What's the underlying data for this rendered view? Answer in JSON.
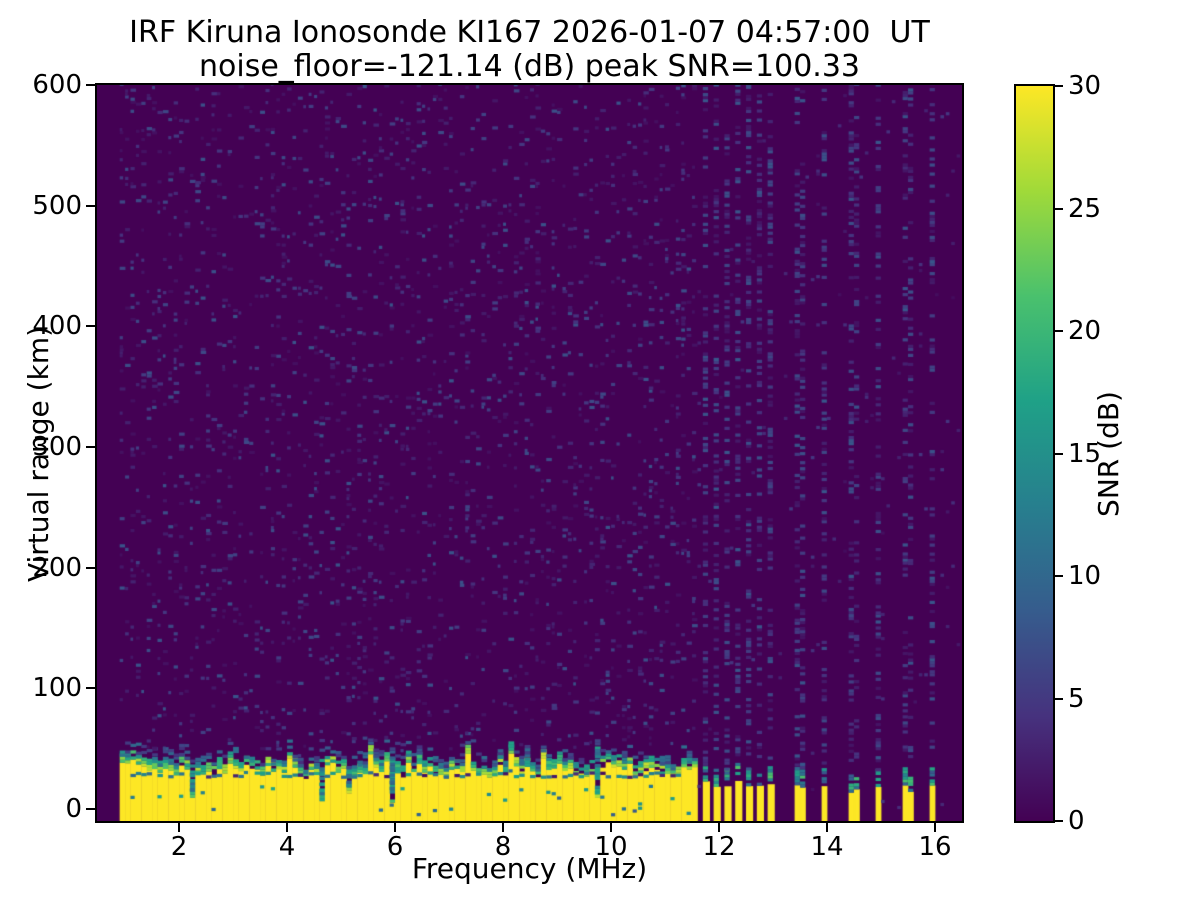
{
  "title": {
    "line1": "IRF Kiruna Ionosonde KI167 2026-01-07 04:57:00  UT",
    "line2": "noise_floor=-121.14 (dB) peak SNR=100.33"
  },
  "axes": {
    "xlabel": "Frequency (MHz)",
    "ylabel": "Virtual range (km)",
    "x_ticks": [
      2,
      4,
      6,
      8,
      10,
      12,
      14,
      16
    ],
    "y_ticks": [
      0,
      100,
      200,
      300,
      400,
      500,
      600
    ],
    "xlim": [
      0.48,
      16.5
    ],
    "ylim": [
      -10,
      600
    ]
  },
  "colorbar": {
    "label": "SNR (dB)",
    "ticks": [
      0,
      5,
      10,
      15,
      20,
      25,
      30
    ],
    "min": 0,
    "max": 30,
    "colormap": "viridis",
    "stops": [
      "#440154",
      "#46327e",
      "#365c8d",
      "#277f8e",
      "#1fa187",
      "#4ac16d",
      "#a0da39",
      "#fde725"
    ]
  },
  "chart_data": {
    "type": "heatmap",
    "title": "IRF Kiruna Ionosonde KI167 2026-01-07 04:57:00  UT",
    "subtitle": "noise_floor=-121.14 (dB) peak SNR=100.33",
    "xlabel": "Frequency (MHz)",
    "ylabel": "Virtual range (km)",
    "xlim": [
      0.48,
      16.5
    ],
    "ylim": [
      -10,
      600
    ],
    "value_label": "SNR (dB)",
    "value_range": [
      0,
      30
    ],
    "noise_floor_db": -121.14,
    "peak_snr_db": 100.33,
    "seed": 20260107,
    "features": {
      "blank_below_mhz": 0.9,
      "frequency_step_mhz": 0.1,
      "range_step_km": 2.5,
      "background_snr_db": 0,
      "noise_speckle": {
        "freq_range_mhz": [
          0.9,
          11.6
        ],
        "density": 0.095,
        "snr_db_range": [
          1,
          8
        ]
      },
      "ground_clutter_band": {
        "freq_range_mhz": [
          0.9,
          11.6
        ],
        "snr_db": 30,
        "top_km_mean": 30,
        "top_km_range": [
          18,
          46
        ],
        "notch_probability": 0.055,
        "notch_top_km_range": [
          4,
          13
        ],
        "teal_line_km": 25
      },
      "interference_stripes": {
        "dense_mhz": [
          11.7,
          11.9,
          12.1,
          12.3,
          12.5,
          12.7,
          12.9
        ],
        "sparse_mhz": [
          13.45,
          13.9,
          14.45,
          14.9,
          15.45,
          15.9
        ],
        "yellow_top_km_range": [
          13,
          24
        ],
        "column_noise_density": 0.3,
        "column_noise_snr_db_range": [
          1.5,
          8
        ]
      },
      "right_background_density": 0.012
    }
  }
}
